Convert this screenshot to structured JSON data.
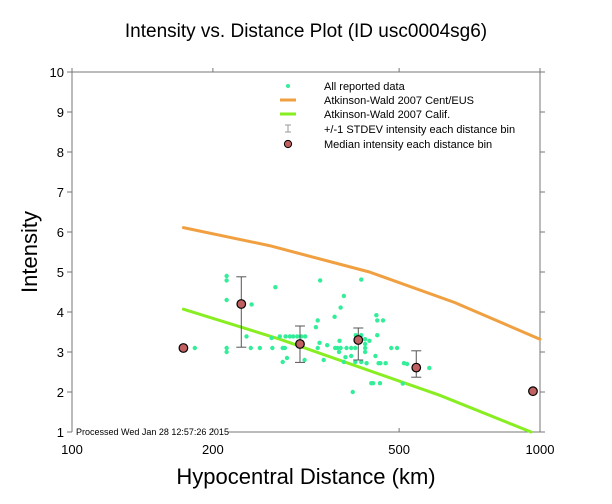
{
  "chart_data": {
    "type": "scatter",
    "title": "Intensity vs. Distance Plot (ID usc0004sg6)",
    "xlabel": "Hypocentral Distance (km)",
    "ylabel": "Intensity",
    "xscale": "log",
    "xlim": [
      100,
      1000
    ],
    "ylim": [
      1,
      10
    ],
    "xticks": [
      100,
      200,
      500,
      1000
    ],
    "xtick_labels": [
      "100",
      "200",
      "500",
      "1000"
    ],
    "yticks": [
      1,
      2,
      3,
      4,
      5,
      6,
      7,
      8,
      9,
      10
    ],
    "ytick_labels": [
      "1",
      "2",
      "3",
      "4",
      "5",
      "6",
      "7",
      "8",
      "9",
      "10"
    ],
    "grid": false,
    "legend_position": "top-right",
    "footnote": "Processed Wed Jan 28 12:57:26 2015",
    "colors": {
      "reported": "#33ee99",
      "cent_eus": "#f0a040",
      "calif": "#88ee22",
      "errorbar": "#555555",
      "median": "#c06060",
      "axis": "#777777"
    },
    "legend": [
      {
        "key": "reported",
        "label": "All reported data",
        "symbol": "dot"
      },
      {
        "key": "cent_eus",
        "label": "Atkinson-Wald 2007 Cent/EUS",
        "symbol": "line"
      },
      {
        "key": "calif",
        "label": "Atkinson-Wald 2007 Calif.",
        "symbol": "line"
      },
      {
        "key": "errorbar",
        "label": "+/-1 STDEV intensity each distance bin",
        "symbol": "errorbar"
      },
      {
        "key": "median",
        "label": "Median intensity each distance bin",
        "symbol": "circle"
      }
    ],
    "series": [
      {
        "name": "All reported data",
        "type": "scatter",
        "points": [
          [
            183,
            3.1
          ],
          [
            214,
            4.9
          ],
          [
            214,
            4.79
          ],
          [
            214,
            4.3
          ],
          [
            214,
            3.1
          ],
          [
            214,
            3.0
          ],
          [
            242,
            4.19
          ],
          [
            236,
            3.39
          ],
          [
            241,
            3.1
          ],
          [
            252,
            3.1
          ],
          [
            267,
            3.35
          ],
          [
            268,
            3.1
          ],
          [
            272,
            4.62
          ],
          [
            278,
            3.39
          ],
          [
            282,
            3.1
          ],
          [
            288,
            2.85
          ],
          [
            282,
            2.75
          ],
          [
            286,
            3.39
          ],
          [
            292,
            3.39
          ],
          [
            297,
            3.39
          ],
          [
            303,
            3.39
          ],
          [
            309,
            3.39
          ],
          [
            315,
            3.39
          ],
          [
            285,
            3.1
          ],
          [
            314,
            2.8
          ],
          [
            332,
            3.62
          ],
          [
            335,
            3.79
          ],
          [
            335,
            3.1
          ],
          [
            338,
            3.23
          ],
          [
            339,
            4.79
          ],
          [
            345,
            2.8
          ],
          [
            351,
            3.17
          ],
          [
            364,
            3.88
          ],
          [
            365,
            3.1
          ],
          [
            373,
            3.28
          ],
          [
            372,
            3.0
          ],
          [
            375,
            4.11
          ],
          [
            381,
            4.4
          ],
          [
            384,
            2.87
          ],
          [
            369,
            3.1
          ],
          [
            375,
            3.1
          ],
          [
            386,
            3.1
          ],
          [
            395,
            3.1
          ],
          [
            403,
            3.1
          ],
          [
            395,
            2.9
          ],
          [
            381,
            2.75
          ],
          [
            403,
            2.75
          ],
          [
            398,
            2.0
          ],
          [
            404,
            3.42
          ],
          [
            415,
            3.42
          ],
          [
            415,
            4.81
          ],
          [
            415,
            2.75
          ],
          [
            423,
            3.32
          ],
          [
            423,
            3.2
          ],
          [
            423,
            3.1
          ],
          [
            423,
            3.0
          ],
          [
            426,
            2.72
          ],
          [
            432,
            3.28
          ],
          [
            436,
            2.22
          ],
          [
            440,
            2.22
          ],
          [
            445,
            2.9
          ],
          [
            447,
            3.92
          ],
          [
            449,
            3.79
          ],
          [
            449,
            3.42
          ],
          [
            452,
            2.72
          ],
          [
            455,
            2.22
          ],
          [
            456,
            2.72
          ],
          [
            462,
            3.79
          ],
          [
            468,
            2.72
          ],
          [
            481,
            3.1
          ],
          [
            495,
            3.1
          ],
          [
            509,
            2.21
          ],
          [
            512,
            2.72
          ],
          [
            520,
            2.7
          ],
          [
            580,
            2.6
          ]
        ]
      },
      {
        "name": "Atkinson-Wald 2007 Cent/EUS",
        "type": "line",
        "points": [
          [
            173,
            6.11
          ],
          [
            264,
            5.66
          ],
          [
            432,
            5.0
          ],
          [
            656,
            4.24
          ],
          [
            1000,
            3.32
          ]
        ]
      },
      {
        "name": "Atkinson-Wald 2007 Calif.",
        "type": "line",
        "points": [
          [
            173,
            4.07
          ],
          [
            278,
            3.32
          ],
          [
            610,
            1.92
          ],
          [
            957,
            1.0
          ]
        ]
      },
      {
        "name": "Median intensity each distance bin",
        "type": "errorbar",
        "points": [
          {
            "x": 173,
            "y": 3.1,
            "low": null,
            "high": null
          },
          {
            "x": 230,
            "y": 4.2,
            "low": 3.12,
            "high": 4.88
          },
          {
            "x": 307,
            "y": 3.2,
            "low": 2.74,
            "high": 3.65
          },
          {
            "x": 409,
            "y": 3.3,
            "low": 2.8,
            "high": 3.6
          },
          {
            "x": 544,
            "y": 2.61,
            "low": 2.37,
            "high": 3.03
          },
          {
            "x": 966,
            "y": 2.02,
            "low": null,
            "high": null
          }
        ]
      }
    ]
  }
}
